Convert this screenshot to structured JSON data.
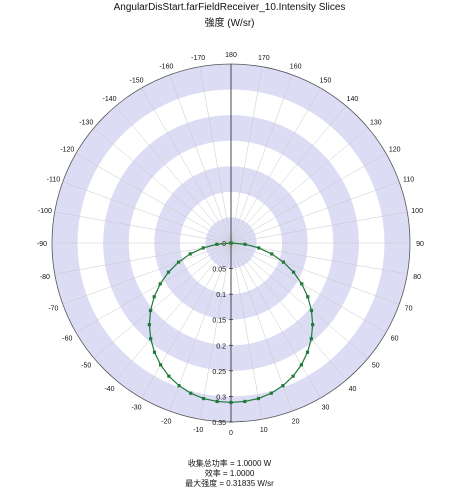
{
  "chart_data": {
    "type": "polar-line",
    "title": "AngularDisStart.farFieldReceiver_10.Intensity Slices",
    "subtitle": "強度 (W/sr)",
    "angular_ticks": [
      -170,
      -160,
      -150,
      -140,
      -130,
      -120,
      -110,
      -100,
      -90,
      -80,
      -70,
      -60,
      -50,
      -40,
      -30,
      -20,
      -10,
      0,
      10,
      20,
      30,
      40,
      50,
      60,
      70,
      80,
      90,
      100,
      110,
      120,
      130,
      140,
      150,
      160,
      170,
      180
    ],
    "angular_labels": [
      "-170",
      "-160",
      "-150",
      "-140",
      "-130",
      "-120",
      "-110",
      "-100",
      "-90",
      "-80",
      "-70",
      "-60",
      "-50",
      "-40",
      "-30",
      "-20",
      "-10",
      "0",
      "10",
      "20",
      "30",
      "40",
      "50",
      "60",
      "70",
      "80",
      "90",
      "100",
      "110",
      "120",
      "130",
      "140",
      "150",
      "160",
      "170",
      "180"
    ],
    "radial_ticks": [
      0,
      0.05,
      0.1,
      0.15,
      0.2,
      0.25,
      0.3,
      0.35
    ],
    "radial_labels": [
      "0",
      "0.05",
      "0.1",
      "0.15",
      "0.2",
      "0.25",
      "0.3",
      "0.35"
    ],
    "rmax": 0.35,
    "series": [
      {
        "color": "#1f7a3a",
        "angles": [
          -90,
          -85,
          -80,
          -75,
          -70,
          -65,
          -60,
          -55,
          -50,
          -45,
          -40,
          -35,
          -30,
          -25,
          -20,
          -15,
          -10,
          -5,
          0,
          5,
          10,
          15,
          20,
          25,
          30,
          35,
          40,
          45,
          50,
          55,
          60,
          65,
          70,
          75,
          80,
          85,
          90
        ],
        "values": [
          0.0,
          0.0277,
          0.0552,
          0.0825,
          0.1091,
          0.1349,
          0.1597,
          0.1833,
          0.2054,
          0.2258,
          0.2443,
          0.2608,
          0.2752,
          0.2873,
          0.2969,
          0.3041,
          0.3088,
          0.311,
          0.3118,
          0.311,
          0.3088,
          0.3041,
          0.2969,
          0.2873,
          0.2752,
          0.2608,
          0.2443,
          0.2258,
          0.2054,
          0.1833,
          0.1597,
          0.1349,
          0.1091,
          0.0825,
          0.0552,
          0.0277,
          0.0
        ]
      }
    ]
  },
  "footer": {
    "line1": "收集总功率 = 1.0000  W",
    "line2": "效率 = 1.0000",
    "line3": "最大强度 = 0.31835  W/sr"
  },
  "colors": {
    "band": "#dcdcf5",
    "series": "#1f7a3a"
  }
}
